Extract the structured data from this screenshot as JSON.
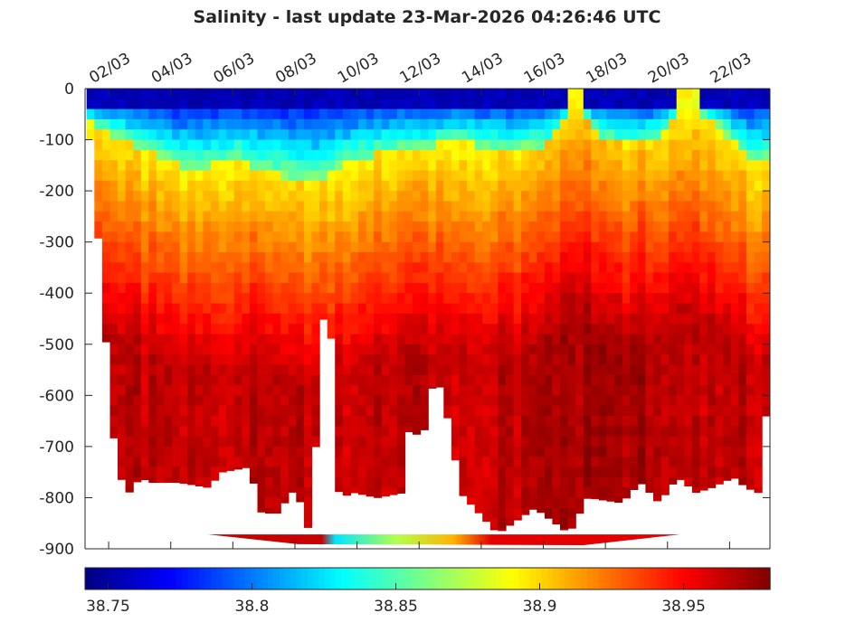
{
  "chart_data": {
    "type": "heatmap",
    "title": "Salinity - last update 23-Mar-2026 04:26:46 UTC",
    "xlabel": "",
    "ylabel": "",
    "x_unit": "day of March 2026",
    "xlim": [
      1.24,
      23.3
    ],
    "ylim": [
      -900,
      0
    ],
    "x_ticks": [
      2,
      4,
      6,
      8,
      10,
      12,
      14,
      16,
      18,
      20,
      22
    ],
    "x_tick_labels": [
      "02/03",
      "04/03",
      "06/03",
      "08/03",
      "10/03",
      "12/03",
      "14/03",
      "16/03",
      "18/03",
      "20/03",
      "22/03"
    ],
    "y_ticks": [
      0,
      -100,
      -200,
      -300,
      -400,
      -500,
      -600,
      -700,
      -800,
      -900
    ],
    "y_tick_labels": [
      "0",
      "-100",
      "-200",
      "-300",
      "-400",
      "-500",
      "-600",
      "-700",
      "-800",
      "-900"
    ],
    "colormap": "jet",
    "clim": [
      38.742,
      38.98
    ],
    "colorbar_ticks": [
      38.75,
      38.8,
      38.85,
      38.9,
      38.95
    ],
    "colorbar_tick_labels": [
      "38.75",
      "38.8",
      "38.85",
      "38.9",
      "38.95"
    ],
    "colorbar_location": "bottom",
    "bottom_depth_profile": {
      "day": [
        1.3,
        1.7,
        2.0,
        2.4,
        2.9,
        3.2,
        4.1,
        5.1,
        5.5,
        6.4,
        6.8,
        7.3,
        7.9,
        8.3,
        8.6,
        8.8,
        9.0,
        9.3,
        9.8,
        10.5,
        11.4,
        11.5,
        12.0,
        12.4,
        12.9,
        13.2,
        13.8,
        14.4,
        15.6,
        16.7,
        17.3,
        18.4,
        19.0,
        19.6,
        20.2,
        20.8,
        21.3,
        22.0,
        22.4,
        22.8,
        23.2
      ],
      "depth": [
        -100,
        -420,
        -670,
        -800,
        -760,
        -770,
        -770,
        -780,
        -750,
        -740,
        -830,
        -830,
        -780,
        -860,
        -660,
        -440,
        -440,
        -800,
        -790,
        -800,
        -790,
        -670,
        -680,
        -550,
        -670,
        -790,
        -830,
        -870,
        -820,
        -870,
        -800,
        -810,
        -770,
        -810,
        -760,
        -790,
        -780,
        -760,
        -780,
        -790,
        -540
      ]
    },
    "fresh_layer_depth": {
      "day": [
        1.3,
        3.0,
        4.5,
        6.0,
        7.5,
        8.5,
        9.5,
        11.0,
        12.0,
        13.0,
        14.5,
        16.0,
        17.0,
        17.6,
        18.5,
        19.5,
        20.5,
        21.5,
        22.5,
        23.2
      ],
      "depth": [
        -60,
        -110,
        -150,
        -130,
        -160,
        -170,
        -140,
        -110,
        -110,
        -90,
        -110,
        -100,
        -20,
        -80,
        -100,
        -90,
        -20,
        -60,
        -130,
        -120
      ]
    },
    "surface_salinity": 38.76,
    "deep_salinity": 38.965
  }
}
